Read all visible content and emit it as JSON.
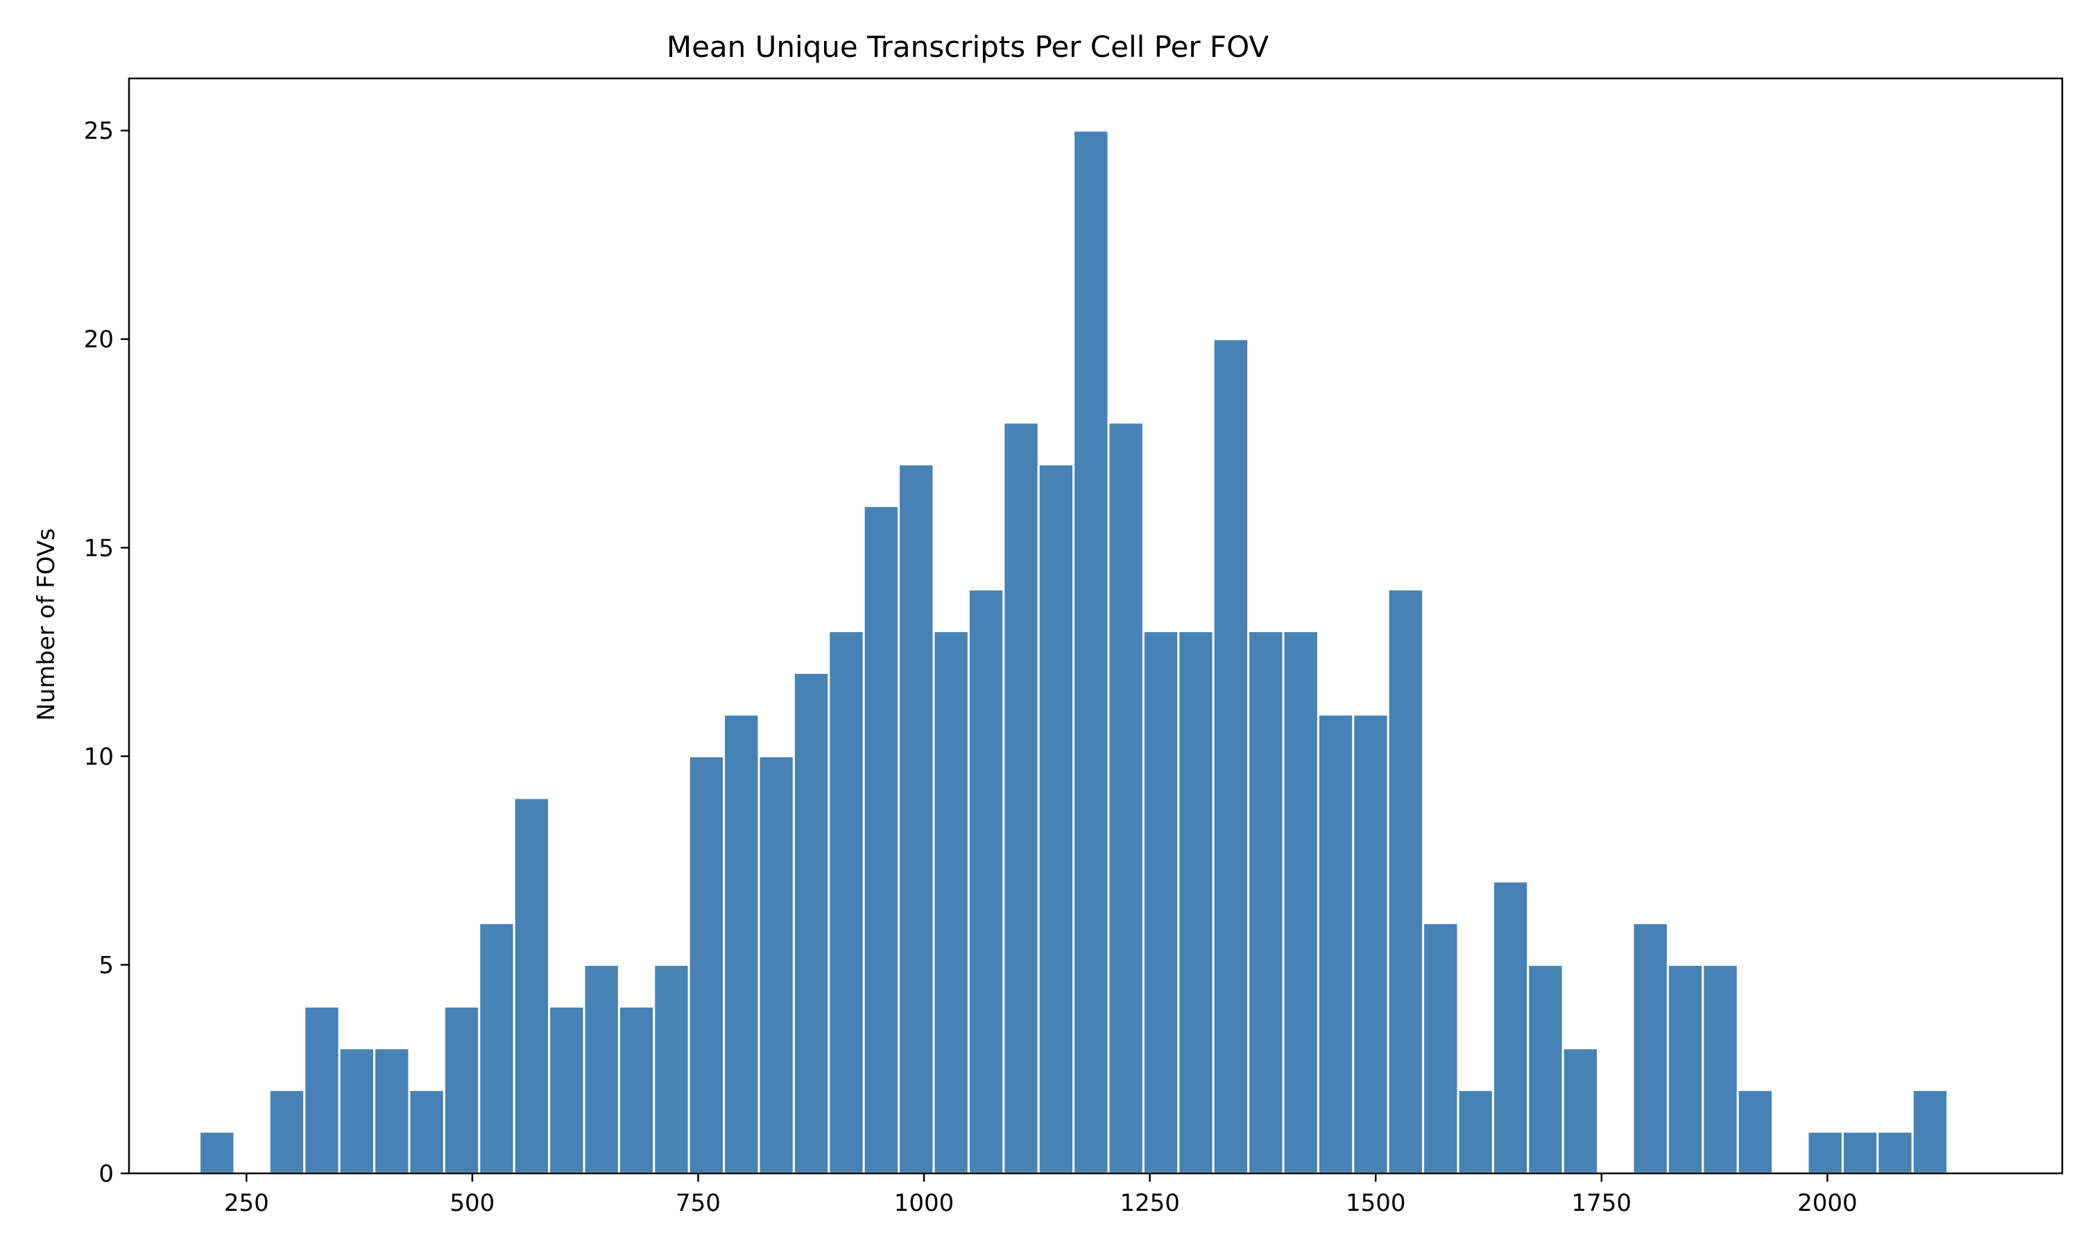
{
  "chart_data": {
    "type": "bar",
    "title": "Mean Unique Transcripts Per Cell Per FOV",
    "xlabel": "",
    "ylabel": "Number of FOVs",
    "xlim": [
      120,
      2260
    ],
    "ylim": [
      0,
      26.25
    ],
    "xticks": [
      250,
      500,
      750,
      1000,
      1250,
      1500,
      1750,
      2000
    ],
    "yticks": [
      0,
      5,
      10,
      15,
      20,
      25
    ],
    "grid": false,
    "bar_color": "#4682b4",
    "edge_color": "#ffffff",
    "bins": {
      "start": 198,
      "width": 38.7
    },
    "values": [
      1,
      0,
      2,
      4,
      3,
      3,
      2,
      4,
      6,
      9,
      4,
      5,
      4,
      5,
      10,
      11,
      10,
      12,
      13,
      16,
      17,
      13,
      14,
      18,
      17,
      25,
      18,
      13,
      13,
      20,
      13,
      13,
      11,
      11,
      14,
      6,
      2,
      7,
      5,
      3,
      0,
      6,
      5,
      5,
      2,
      0,
      1,
      1,
      1,
      2
    ]
  }
}
